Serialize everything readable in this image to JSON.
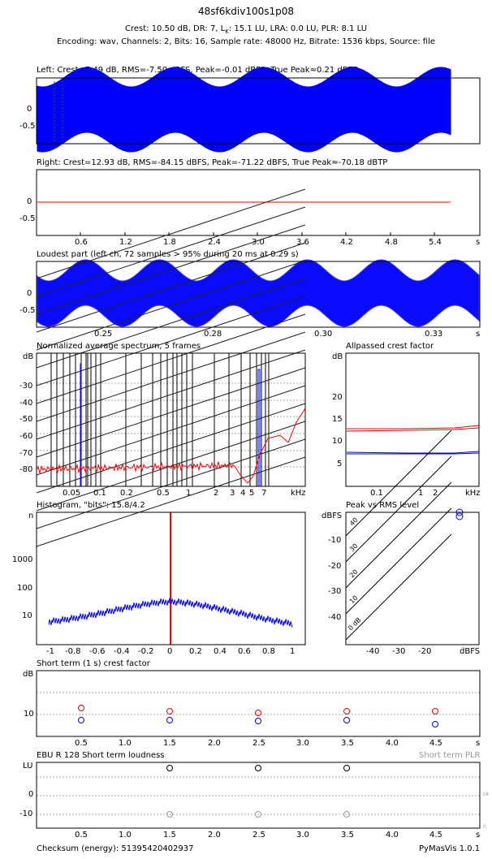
{
  "header": {
    "title": "48sf6kdiv100s1p08",
    "line1": "Crest: 10.50 dB,  DR: 7,  L",
    "line1_sub": "K",
    "line1_rest": ": 15.1 LU,  LRA: 0.0 LU,  PLR: 8.1 LU",
    "line2": "Encoding: wav,  Channels: 2,  Bits: 16,  Sample rate: 48000 Hz,  Bitrate: 1536 kbps,  Source: file"
  },
  "panels": {
    "left": {
      "title": "Left: Crest=7.49 dB, RMS=-7.50 dBFS, Peak=-0.01 dBFS, True Peak≈0.21 dBTP",
      "yticks": [
        "0",
        "-0.5"
      ]
    },
    "right": {
      "title": "Right: Crest=12.93 dB, RMS=-84.15 dBFS, Peak=-71.22 dBFS, True Peak≈-70.18 dBTP",
      "yticks": [
        "0",
        "-0.5"
      ],
      "xticks": [
        "0.6",
        "1.2",
        "1.8",
        "2.4",
        "3.0",
        "3.6",
        "4.2",
        "4.8",
        "5.4"
      ],
      "xunit": "s"
    },
    "loudest": {
      "title": "Loudest part (left ch, 72 samples > 95% during 20 ms at 0.29 s)",
      "yticks": [
        "0",
        "-0.5"
      ],
      "xticks": [
        "0.25",
        "0.28",
        "0.30",
        "0.33"
      ],
      "xunit": "s"
    },
    "spectrum": {
      "title": "Normalized average spectrum, 5 frames",
      "ylabel": "dB",
      "yticks": [
        "-30",
        "-40",
        "-50",
        "-60",
        "-70",
        "-80"
      ],
      "xticks": [
        "0.05",
        "0.1",
        "0.2",
        "0.5",
        "1",
        "2",
        "3",
        "4",
        "5",
        "7"
      ],
      "xunit": "kHz"
    },
    "allpass": {
      "title": "Allpassed crest factor",
      "ylabel": "dB",
      "yticks": [
        "20",
        "15",
        "10",
        "5"
      ],
      "xticks": [
        "0.1",
        "1",
        "2"
      ],
      "xunit": "kHz"
    },
    "histogram": {
      "title": "Histogram, \"bits\": 15.8/4.2",
      "ylabel": "n",
      "yticks": [
        "1000",
        "100",
        "10"
      ],
      "xticks": [
        "-1",
        "-0.8",
        "-0.6",
        "-0.4",
        "-0.2",
        "0",
        "0.2",
        "0.4",
        "0.6",
        "0.8",
        "1"
      ]
    },
    "peakrms": {
      "title": "Peak vs RMS level",
      "ylabel": "dBFS",
      "yticks": [
        "-10",
        "-20",
        "-30",
        "-40"
      ],
      "xticks": [
        "-40",
        "-30",
        "-20"
      ],
      "xunit": "dBFS",
      "diag_labels": [
        "40",
        "30",
        "20",
        "10",
        "0 dB"
      ]
    },
    "shortcrest": {
      "title": "Short term (1 s) crest factor",
      "ylabel": "dB",
      "yticks": [
        "10"
      ],
      "xticks": [
        "0.5",
        "1.0",
        "1.5",
        "2.0",
        "2.5",
        "3.0",
        "3.5",
        "4.0",
        "4.5"
      ],
      "xunit": "s"
    },
    "ebu": {
      "title": "EBU R 128 Short term loudness",
      "right_title": "Short term PLR",
      "ylabel": "LU",
      "yticks": [
        "0",
        "-10"
      ],
      "right_yticks": [
        "18",
        "0"
      ],
      "xticks": [
        "0.5",
        "1.0",
        "1.5",
        "2.0",
        "2.5",
        "3.0",
        "3.5",
        "4.0",
        "4.5"
      ],
      "xunit": "s"
    }
  },
  "footer": {
    "checksum": "Checksum (energy): 51395420402937",
    "version": "PyMasVis 1.0.1"
  },
  "colors": {
    "left": "#0000ff",
    "right": "#ff0000",
    "grid": "#aaaaaa"
  },
  "chart_data": [
    {
      "type": "line",
      "title": "Left: Crest=7.49 dB, RMS=-7.50 dBFS, Peak=-0.01 dBFS, True Peak≈0.21 dBTP",
      "ylim": [
        -0.9,
        0.9
      ],
      "x": [
        0,
        0.6,
        1.2,
        1.8,
        2.4,
        3.0,
        3.6,
        4.2,
        4.8,
        5.4,
        5.6
      ],
      "series": [
        {
          "values": [
            0,
            0,
            0,
            0,
            0,
            0,
            0,
            0,
            0,
            0,
            0
          ]
        }
      ]
    },
    {
      "type": "line",
      "title": "Right: Crest=12.93 dB, RMS=-84.15 dBFS, Peak=-71.22 dBFS, True Peak≈-70.18 dBTP",
      "ylim": [
        -0.9,
        0.9
      ],
      "x": [
        0,
        5.6
      ],
      "series": [
        {
          "values": [
            0,
            0
          ]
        }
      ]
    },
    {
      "type": "line",
      "title": "Loudest part (left ch, 72 samples > 95% during 20 ms at 0.29 s)",
      "x": [
        0.25,
        0.28,
        0.3,
        0.33
      ],
      "ylim": [
        -0.9,
        0.9
      ]
    },
    {
      "type": "line",
      "title": "Normalized average spectrum, 5 frames",
      "x": [
        0.05,
        0.1,
        0.2,
        0.5,
        1,
        2,
        3,
        4,
        5,
        7
      ],
      "series": [
        {
          "values": [
            -79,
            -79,
            -78,
            -77,
            -76,
            -77,
            -80,
            -85,
            -70,
            -60
          ]
        }
      ]
    },
    {
      "type": "line",
      "title": "Allpassed crest factor",
      "x": [
        0.1,
        1,
        2
      ],
      "series": [
        {
          "values": [
            13,
            13,
            13.2
          ]
        },
        {
          "values": [
            7.3,
            7.4,
            7.5
          ]
        }
      ]
    },
    {
      "type": "line",
      "title": "Histogram, \"bits\": 15.8/4.2",
      "x": [
        -1,
        -0.8,
        -0.6,
        -0.4,
        -0.2,
        0,
        0.2,
        0.4,
        0.6,
        0.8,
        1
      ],
      "series": [
        {
          "values": [
            6,
            6,
            7,
            10,
            14,
            16,
            17,
            12,
            9,
            8,
            7
          ]
        }
      ]
    },
    {
      "type": "scatter",
      "title": "Peak vs RMS level",
      "series": [
        {
          "values": [
            [
              -7.5,
              -0.01
            ]
          ]
        }
      ]
    },
    {
      "type": "scatter",
      "title": "Short term (1 s) crest factor",
      "x": [
        0.5,
        1.5,
        2.5,
        3.5,
        4.5
      ],
      "series": [
        {
          "values": [
            11.5,
            10.8,
            10.3,
            10.8,
            10.8
          ]
        },
        {
          "values": [
            8.7,
            8.7,
            8.5,
            8.7,
            7.6
          ]
        }
      ]
    },
    {
      "type": "scatter",
      "title": "EBU R 128 Short term loudness",
      "x": [
        1.5,
        2.5,
        3.5
      ],
      "series": [
        {
          "values": [
            14,
            14,
            14
          ]
        },
        {
          "values": [
            -10,
            -10,
            -10
          ]
        }
      ]
    }
  ]
}
